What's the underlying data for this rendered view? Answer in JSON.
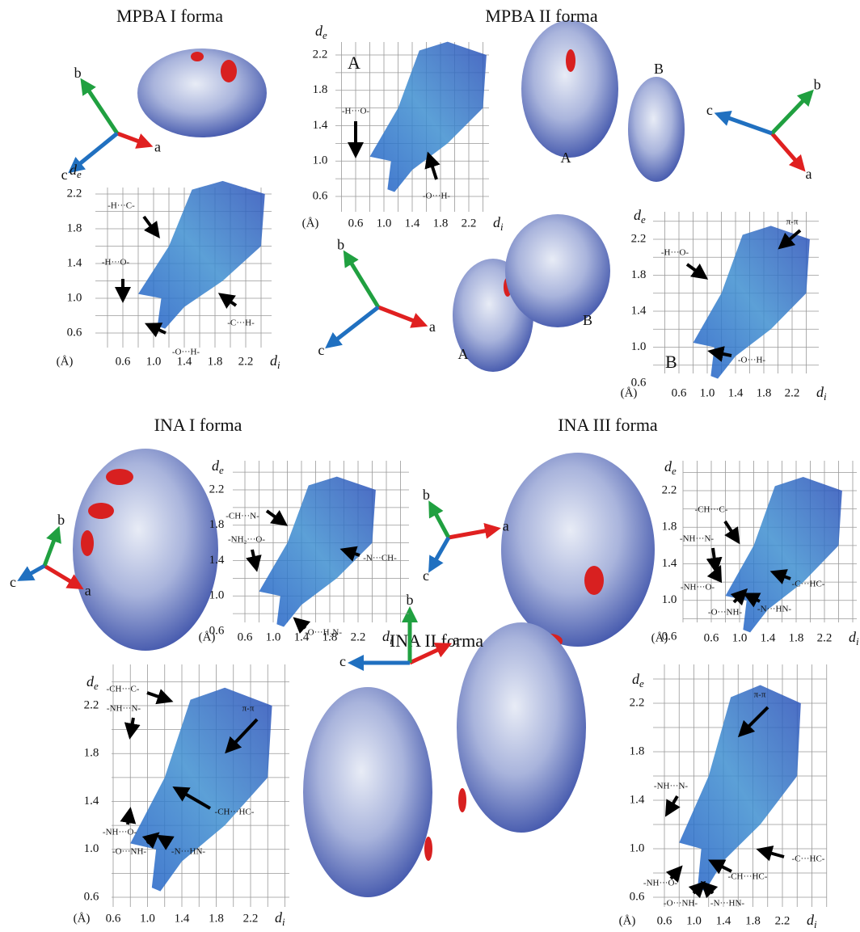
{
  "titles": [
    "MPBA I forma",
    "MPBA II forma",
    "INA I forma",
    "INA III forma",
    "INA II forma"
  ],
  "axis_names": [
    "a",
    "b",
    "c"
  ],
  "surface_labels": [
    "A",
    "B"
  ],
  "fingerprint": {
    "y_symbol": "d",
    "y_sub": "e",
    "x_symbol": "d",
    "x_sub": "i",
    "unit": "(Å)",
    "yticks": [
      "2.2",
      "1.8",
      "1.4",
      "1.0",
      "0.6"
    ],
    "xticks": [
      "0.6",
      "1.0",
      "1.4",
      "1.8",
      "2.2"
    ]
  },
  "plots": [
    {
      "annotations": [
        "-H···C-",
        "-H···O-",
        "-C···H-",
        "-O···H-"
      ]
    },
    {
      "letter": "A",
      "annotations": [
        "-H···O-",
        "-O···H-"
      ]
    },
    {
      "letter": "B",
      "annotations": [
        "-H···O-",
        "π-π",
        "-O···H-"
      ]
    },
    {
      "annotations": [
        "-CH···N-",
        "-NH₂···O-",
        "-N···CH-",
        "-O···H₂N-"
      ]
    },
    {
      "annotations": [
        "-CH···C-",
        "-NH···N-",
        "-NH···O-",
        "-C···HC-",
        "-O···NH-",
        "-N···HN-"
      ]
    },
    {
      "annotations": [
        "-CH···C-",
        "-NH···N-",
        "-NH···O-",
        "-O···NH-",
        "-N···HN-",
        "-CH···HC-",
        "π-π"
      ]
    },
    {
      "annotations": [
        "-NH···N-",
        "-NH···O-",
        "-O···NH-",
        "-N···HN-",
        "-CH···HC-",
        "-C···HC-",
        "π-π"
      ]
    }
  ]
}
